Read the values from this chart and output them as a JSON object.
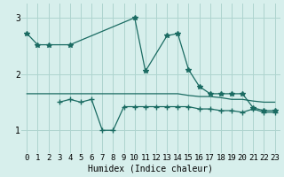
{
  "xlabel": "Humidex (Indice chaleur)",
  "bg_color": "#d7efec",
  "grid_color": "#aed4cf",
  "line_color": "#1a6b62",
  "xlim": [
    -0.5,
    23.5
  ],
  "ylim": [
    0.6,
    3.25
  ],
  "xticks": [
    0,
    1,
    2,
    3,
    4,
    5,
    6,
    7,
    8,
    9,
    10,
    11,
    12,
    13,
    14,
    15,
    16,
    17,
    18,
    19,
    20,
    21,
    22,
    23
  ],
  "yticks": [
    1,
    2,
    3
  ],
  "line1_x": [
    0,
    1,
    2,
    4,
    10,
    11,
    13,
    14,
    15,
    16,
    17,
    18,
    19,
    20,
    21,
    22,
    23
  ],
  "line1_y": [
    2.72,
    2.52,
    2.52,
    2.52,
    3.0,
    2.05,
    2.68,
    2.72,
    2.08,
    1.78,
    1.65,
    1.65,
    1.65,
    1.65,
    1.4,
    1.35,
    1.35
  ],
  "line2_x": [
    3,
    4,
    5,
    6,
    7,
    8,
    9,
    10,
    11,
    12,
    13,
    14,
    15,
    16,
    17,
    18,
    19,
    20,
    21,
    22,
    23
  ],
  "line2_y": [
    1.5,
    1.55,
    1.5,
    1.55,
    1.0,
    1.0,
    1.42,
    1.42,
    1.42,
    1.42,
    1.42,
    1.42,
    1.42,
    1.38,
    1.38,
    1.35,
    1.35,
    1.32,
    1.38,
    1.32,
    1.32
  ],
  "line3_x": [
    0,
    1,
    2,
    3,
    4,
    5,
    6,
    7,
    8,
    9,
    10,
    11,
    12,
    13,
    14,
    15,
    16,
    17,
    18,
    19,
    20,
    21,
    22,
    23
  ],
  "line3_y": [
    1.65,
    1.65,
    1.65,
    1.65,
    1.65,
    1.65,
    1.65,
    1.65,
    1.65,
    1.65,
    1.65,
    1.65,
    1.65,
    1.65,
    1.65,
    1.62,
    1.6,
    1.6,
    1.58,
    1.55,
    1.55,
    1.52,
    1.5,
    1.5
  ]
}
